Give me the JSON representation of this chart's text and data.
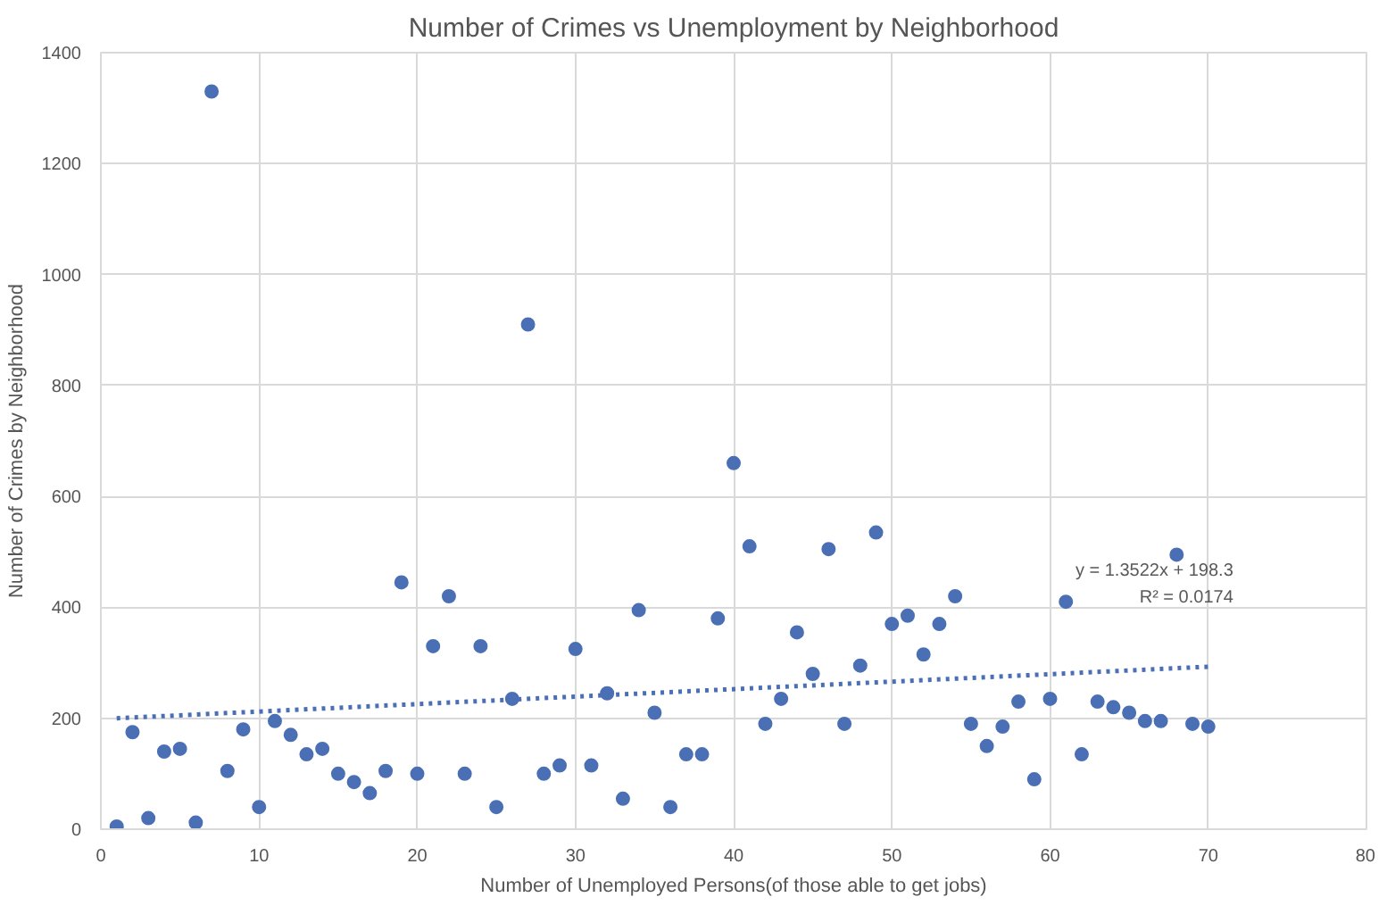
{
  "chart_data": {
    "type": "scatter",
    "title": "Number of Crimes vs Unemployment by Neighborhood",
    "xlabel": "Number of Unemployed Persons(of those able to get jobs)",
    "ylabel": "Number of Crimes by Neighborhood",
    "xlim": [
      0,
      80
    ],
    "xticks": [
      0,
      10,
      20,
      30,
      40,
      50,
      60,
      70,
      80
    ],
    "ylim": [
      0,
      1400
    ],
    "yticks": [
      0,
      200,
      400,
      600,
      800,
      1000,
      1200,
      1400
    ],
    "grid": true,
    "marker": "circle",
    "annotations": [
      "y = 1.3522x + 198.3",
      "R² = 0.0174"
    ],
    "series": [
      {
        "color": "#4a6fb5",
        "x": [
          1,
          2,
          3,
          4,
          5,
          6,
          7,
          8,
          9,
          10,
          11,
          12,
          13,
          14,
          15,
          16,
          17,
          18,
          19,
          20,
          21,
          22,
          23,
          24,
          25,
          26,
          27,
          28,
          29,
          30,
          31,
          32,
          33,
          34,
          35,
          36,
          37,
          38,
          39,
          40,
          41,
          42,
          43,
          44,
          45,
          46,
          47,
          48,
          49,
          50,
          51,
          52,
          53,
          54,
          55,
          56,
          57,
          58,
          59,
          60,
          61,
          62,
          63,
          64,
          65,
          66,
          67,
          68,
          69,
          70
        ],
        "values": [
          5,
          175,
          20,
          140,
          145,
          12,
          1330,
          105,
          180,
          40,
          195,
          170,
          135,
          145,
          100,
          85,
          65,
          105,
          445,
          100,
          330,
          420,
          100,
          330,
          40,
          235,
          910,
          100,
          115,
          325,
          115,
          245,
          55,
          395,
          210,
          40,
          135,
          135,
          380,
          660,
          510,
          190,
          235,
          355,
          280,
          505,
          190,
          295,
          535,
          370,
          385,
          315,
          370,
          420,
          190,
          150,
          185,
          230,
          90,
          235,
          410,
          135,
          230,
          220,
          210,
          195,
          195,
          495,
          190,
          185
        ]
      },
      {
        "type": "line",
        "color": "#4a6fb5",
        "line_style": "dotted",
        "marker": "none",
        "x": [
          1,
          70
        ],
        "values": [
          200,
          293
        ]
      }
    ]
  }
}
